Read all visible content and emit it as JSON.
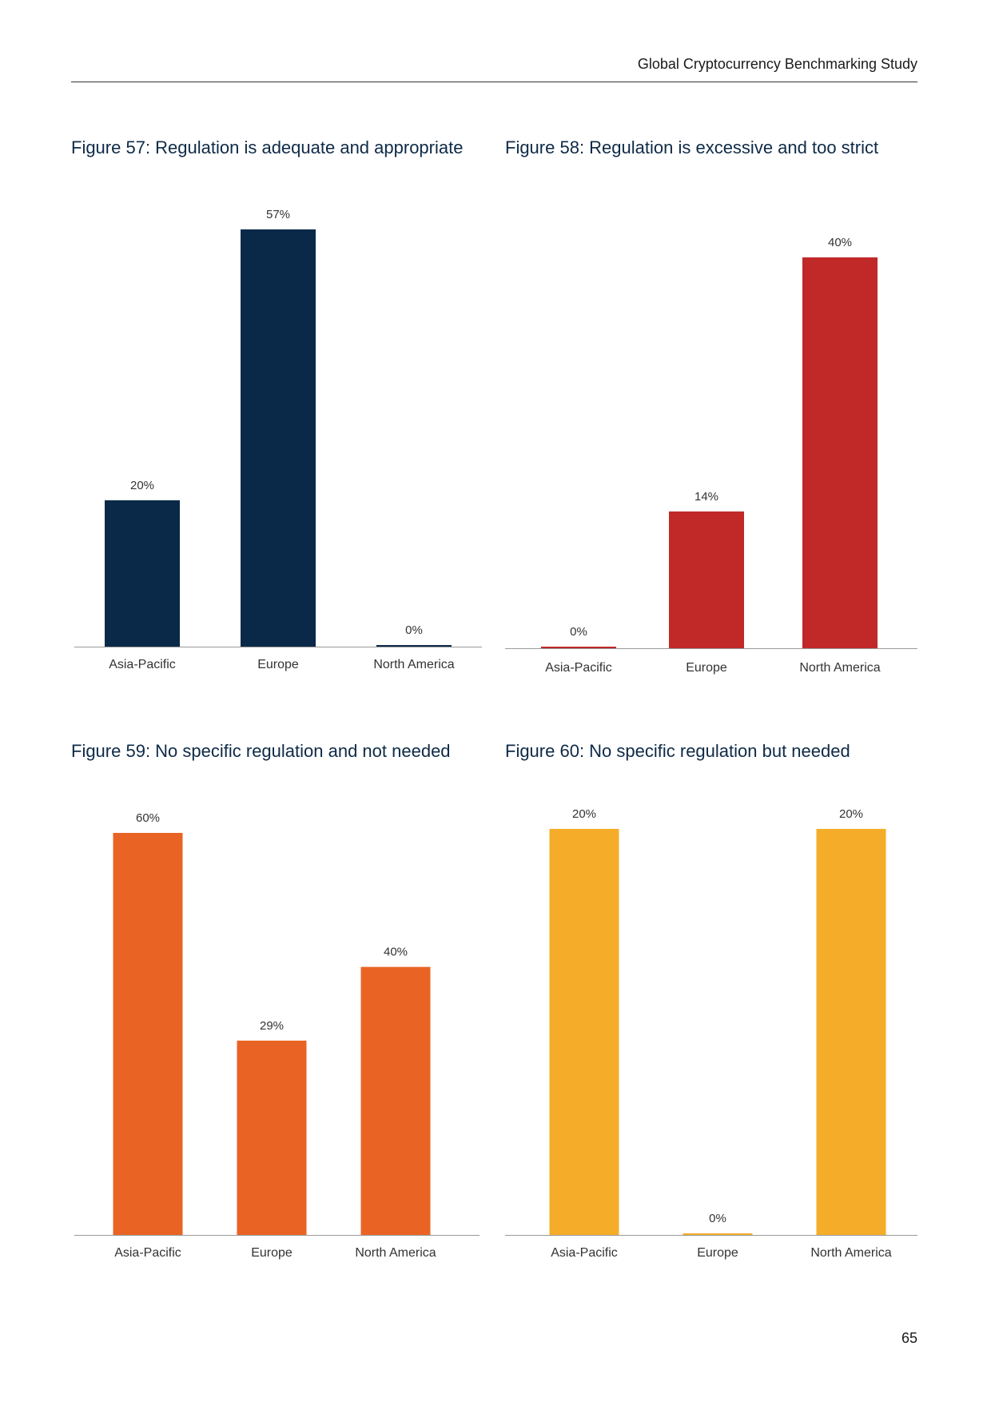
{
  "header": {
    "title": "Global Cryptocurrency Benchmarking Study"
  },
  "page_number": "65",
  "chart_data": [
    {
      "type": "bar",
      "title": "Figure 57: Regulation is adequate and appropriate",
      "categories": [
        "Asia-Pacific",
        "Europe",
        "North America"
      ],
      "values": [
        20,
        57,
        0
      ],
      "value_labels": [
        "20%",
        "57%",
        "0%"
      ],
      "ylim": [
        0,
        57
      ],
      "color": "#0a2948",
      "xlabel": "",
      "ylabel": ""
    },
    {
      "type": "bar",
      "title": "Figure 58: Regulation is excessive and too strict",
      "categories": [
        "Asia-Pacific",
        "Europe",
        "North America"
      ],
      "values": [
        0,
        14,
        40
      ],
      "value_labels": [
        "0%",
        "14%",
        "40%"
      ],
      "ylim": [
        0,
        40
      ],
      "color": "#c12828",
      "xlabel": "",
      "ylabel": ""
    },
    {
      "type": "bar",
      "title": "Figure 59: No specific regulation and not needed",
      "categories": [
        "Asia-Pacific",
        "Europe",
        "North America"
      ],
      "values": [
        60,
        29,
        40
      ],
      "value_labels": [
        "60%",
        "29%",
        "40%"
      ],
      "ylim": [
        0,
        60
      ],
      "color": "#e96424",
      "xlabel": "",
      "ylabel": ""
    },
    {
      "type": "bar",
      "title": "Figure 60: No specific regulation but needed",
      "categories": [
        "Asia-Pacific",
        "Europe",
        "North America"
      ],
      "values": [
        20,
        0,
        20
      ],
      "value_labels": [
        "20%",
        "0%",
        "20%"
      ],
      "ylim": [
        0,
        20
      ],
      "color": "#f5ad29",
      "xlabel": "",
      "ylabel": ""
    }
  ]
}
